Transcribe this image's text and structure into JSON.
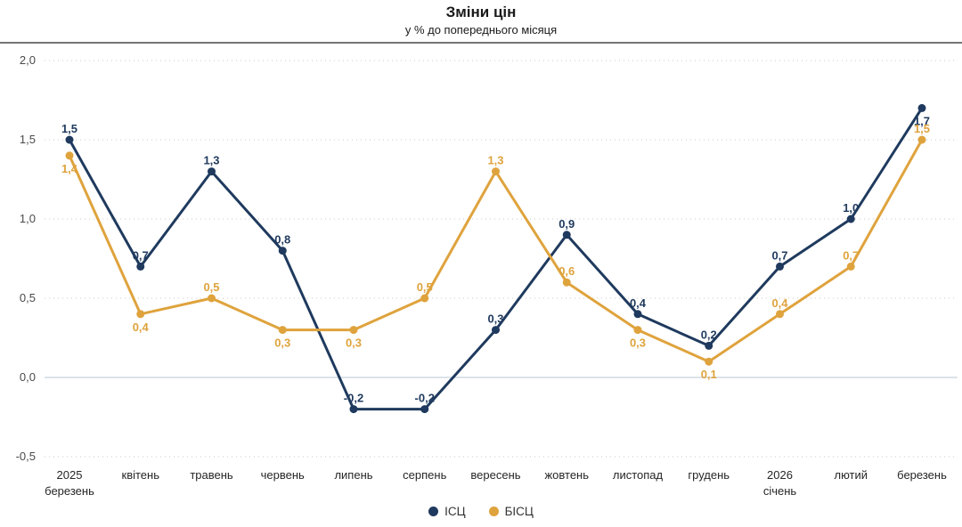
{
  "chart_data": {
    "type": "line",
    "title": "Зміни цін",
    "subtitle": "у % до попереднього місяця",
    "categories": [
      "2025\nберезень",
      "квітень",
      "травень",
      "червень",
      "липень",
      "серпень",
      "вересень",
      "жовтень",
      "листопад",
      "грудень",
      "2026\nсічень",
      "лютий",
      "березень"
    ],
    "series": [
      {
        "name": "ІСЦ",
        "color": "#1f3a5e",
        "values": [
          1.5,
          0.7,
          1.3,
          0.8,
          -0.2,
          -0.2,
          0.3,
          0.9,
          0.4,
          0.2,
          0.7,
          1.0,
          1.7
        ],
        "point_labels": [
          "1,5",
          "0,7",
          "1,3",
          "0,8",
          "-0,2",
          "-0,2",
          "0,3",
          "0,9",
          "0,4",
          "0,2",
          "0,7",
          "1,0",
          "1,7"
        ],
        "label_side": [
          "above",
          "above",
          "above",
          "above",
          "above",
          "above",
          "above",
          "above",
          "above",
          "above",
          "above",
          "above",
          "below"
        ]
      },
      {
        "name": "БІСЦ",
        "color": "#dfa33d",
        "values": [
          1.4,
          0.4,
          0.5,
          0.3,
          0.3,
          0.5,
          1.3,
          0.6,
          0.3,
          0.1,
          0.4,
          0.7,
          1.5
        ],
        "point_labels": [
          "1,4",
          "0,4",
          "0,5",
          "0,3",
          "0,3",
          "0,5",
          "1,3",
          "0,6",
          "0,3",
          "0,1",
          "0,4",
          "0,7",
          "1,5"
        ],
        "label_side": [
          "below",
          "below",
          "above",
          "below",
          "below",
          "above",
          "above",
          "above",
          "below",
          "below",
          "above",
          "above",
          "above"
        ]
      }
    ],
    "y_axis": {
      "min": -0.5,
      "max": 2.0,
      "step": 0.5,
      "ticks": [
        {
          "value": 2.0,
          "label": "2,0"
        },
        {
          "value": 1.5,
          "label": "1,5"
        },
        {
          "value": 1.0,
          "label": "1,0"
        },
        {
          "value": 0.5,
          "label": "0,5"
        },
        {
          "value": 0.0,
          "label": "0,0"
        },
        {
          "value": -0.5,
          "label": "-0,5"
        }
      ],
      "zero_line_solid": true
    },
    "grid": "horizontal-dotted",
    "legend_position": "bottom"
  }
}
